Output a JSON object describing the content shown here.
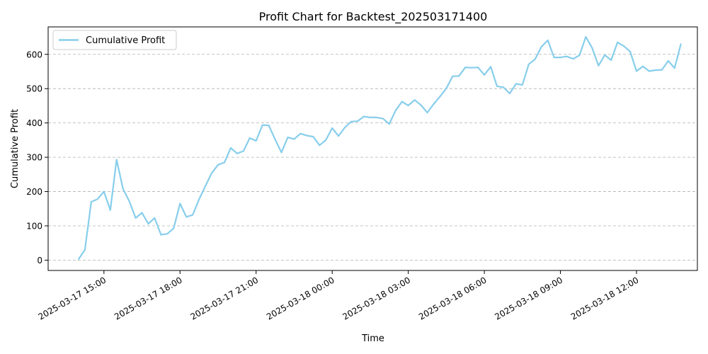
{
  "chart_data": {
    "type": "line",
    "title": "Profit Chart for Backtest_202503171400",
    "xlabel": "Time",
    "ylabel": "Cumulative Profit",
    "x_ticks": [
      {
        "value": 1,
        "label": "2025-03-17 15:00"
      },
      {
        "value": 4,
        "label": "2025-03-17 18:00"
      },
      {
        "value": 7,
        "label": "2025-03-17 21:00"
      },
      {
        "value": 10,
        "label": "2025-03-18 00:00"
      },
      {
        "value": 13,
        "label": "2025-03-18 03:00"
      },
      {
        "value": 16,
        "label": "2025-03-18 06:00"
      },
      {
        "value": 19,
        "label": "2025-03-18 09:00"
      },
      {
        "value": 22,
        "label": "2025-03-18 12:00"
      }
    ],
    "y_ticks": [
      0,
      100,
      200,
      300,
      400,
      500,
      600
    ],
    "xlim": [
      -1.2,
      24.4
    ],
    "ylim": [
      -30,
      680
    ],
    "grid": "y-dashed",
    "legend": "upper-left",
    "series": [
      {
        "name": "Cumulative Profit",
        "color": "#87CEEB",
        "x": [
          -0.0,
          0.25,
          0.5,
          0.75,
          1.0,
          1.25,
          1.5,
          1.75,
          2.0,
          2.25,
          2.5,
          2.75,
          3.0,
          3.25,
          3.5,
          3.75,
          4.0,
          4.25,
          4.5,
          4.75,
          5.0,
          5.25,
          5.5,
          5.75,
          6.0,
          6.25,
          6.5,
          6.75,
          7.0,
          7.25,
          7.5,
          7.75,
          8.0,
          8.25,
          8.5,
          8.75,
          9.0,
          9.25,
          9.5,
          9.75,
          10.0,
          10.25,
          10.5,
          10.75,
          11.0,
          11.25,
          11.5,
          11.75,
          12.0,
          12.25,
          12.5,
          12.75,
          13.0,
          13.25,
          13.5,
          13.75,
          14.0,
          14.25,
          14.5,
          14.75,
          15.0,
          15.25,
          15.5,
          15.75,
          16.0,
          16.25,
          16.5,
          16.75,
          17.0,
          17.25,
          17.5,
          17.75,
          18.0,
          18.25,
          18.5,
          18.75,
          19.0,
          19.25,
          19.5,
          19.75,
          20.0,
          20.25,
          20.5,
          20.75,
          21.0,
          21.25,
          21.5,
          21.75,
          22.0,
          22.25,
          22.5,
          22.75,
          23.0,
          23.25,
          23.5,
          23.75
        ],
        "y": [
          3,
          30,
          170,
          178,
          200,
          146,
          293,
          208,
          172,
          123,
          138,
          106,
          123,
          74,
          77,
          93,
          165,
          126,
          132,
          177,
          216,
          254,
          278,
          285,
          327,
          311,
          318,
          356,
          348,
          394,
          393,
          352,
          314,
          358,
          353,
          369,
          363,
          360,
          335,
          350,
          385,
          362,
          387,
          404,
          405,
          419,
          416,
          416,
          413,
          397,
          436,
          462,
          451,
          467,
          452,
          430,
          455,
          477,
          501,
          536,
          537,
          562,
          561,
          562,
          540,
          564,
          507,
          504,
          486,
          514,
          511,
          571,
          586,
          622,
          641,
          591,
          591,
          594,
          587,
          597,
          651,
          619,
          567,
          598,
          583,
          635,
          624,
          608,
          551,
          565,
          551,
          554,
          555,
          581,
          560,
          630
        ]
      }
    ]
  }
}
